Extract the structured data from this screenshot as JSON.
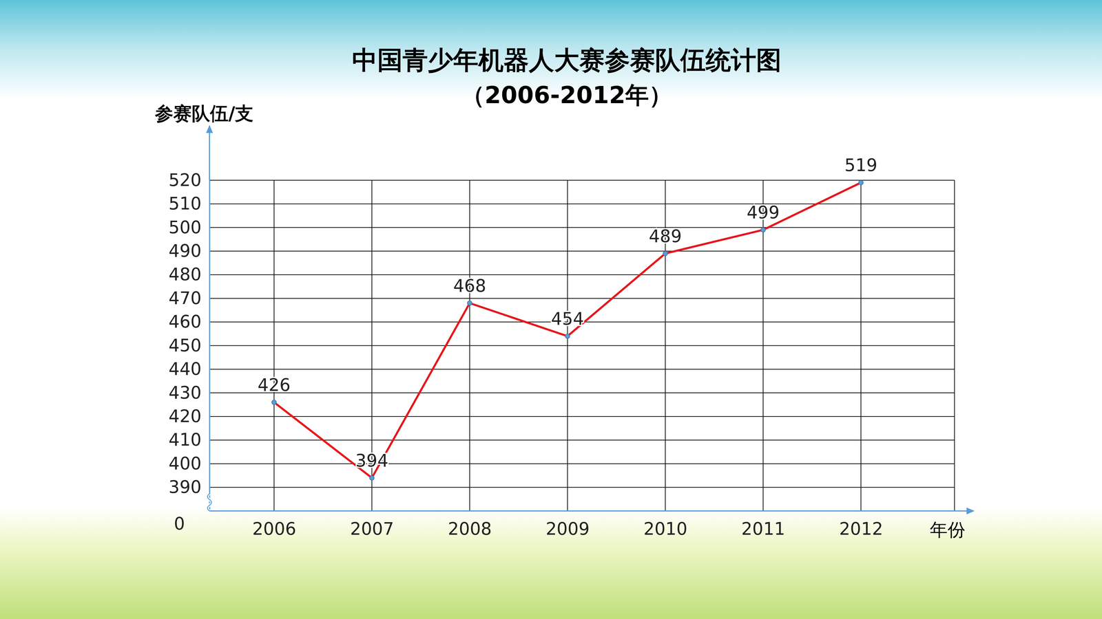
{
  "chart_data": {
    "type": "line",
    "title": "中国青少年机器人大赛参赛队伍统计图",
    "subtitle": "（2006-2012年）",
    "y_label": "参赛队伍/支",
    "x_label": "年份",
    "categories": [
      "2006",
      "2007",
      "2008",
      "2009",
      "2010",
      "2011",
      "2012"
    ],
    "values": [
      426,
      394,
      468,
      454,
      489,
      499,
      519
    ],
    "color": "#e8161b",
    "marker": "circle",
    "ylim": [
      380,
      520
    ],
    "yticks": [
      390,
      400,
      410,
      420,
      430,
      440,
      450,
      460,
      470,
      480,
      490,
      500,
      510,
      520
    ],
    "grid": true,
    "data_labels": true,
    "annotations": [
      {
        "text": "0"
      }
    ]
  }
}
